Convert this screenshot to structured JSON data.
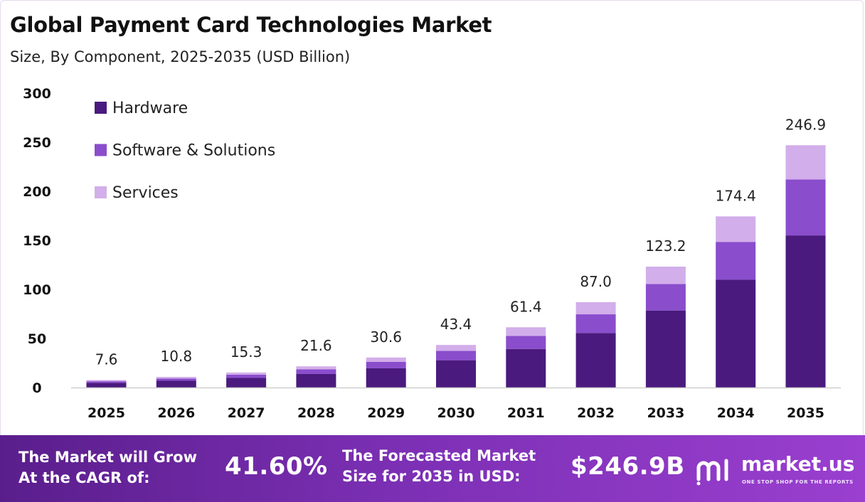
{
  "header": {
    "title": "Global Payment Card Technologies Market",
    "subtitle": "Size, By Component, 2025-2035 (USD Billion)"
  },
  "chart_data": {
    "type": "bar",
    "stacked": true,
    "categories": [
      "2025",
      "2026",
      "2027",
      "2028",
      "2029",
      "2030",
      "2031",
      "2032",
      "2033",
      "2034",
      "2035"
    ],
    "series": [
      {
        "name": "Hardware",
        "color": "#4a1a7e",
        "values": [
          4.8,
          6.9,
          9.8,
          13.8,
          19.6,
          27.8,
          39.3,
          55.6,
          78.5,
          110.0,
          155.0
        ]
      },
      {
        "name": "Software & Solutions",
        "color": "#8a4dcc",
        "values": [
          1.6,
          2.3,
          3.3,
          4.7,
          6.5,
          9.5,
          13.3,
          19.0,
          27.0,
          38.4,
          57.0
        ]
      },
      {
        "name": "Services",
        "color": "#d2aeea",
        "values": [
          1.2,
          1.6,
          2.2,
          3.1,
          4.5,
          6.1,
          8.8,
          12.4,
          17.7,
          26.0,
          34.9
        ]
      }
    ],
    "totals": [
      "7.6",
      "10.8",
      "15.3",
      "21.6",
      "30.6",
      "43.4",
      "61.4",
      "87.0",
      "123.2",
      "174.4",
      "246.9"
    ],
    "y_ticks": [
      "0",
      "50",
      "100",
      "150",
      "200",
      "250",
      "300"
    ],
    "ylim": [
      0,
      300
    ],
    "legend_position": "top-left",
    "grid": false
  },
  "footer": {
    "cagr_label_line1": "The Market will Grow",
    "cagr_label_line2": "At the CAGR of:",
    "cagr_value": "41.60%",
    "forecast_label_line1": "The Forecasted Market",
    "forecast_label_line2": "Size for 2035 in USD:",
    "forecast_value": "$246.9B",
    "brand_name": "market.us",
    "brand_tagline": "ONE STOP SHOP FOR THE REPORTS",
    "brand_icon": "market-us-logo-icon"
  }
}
